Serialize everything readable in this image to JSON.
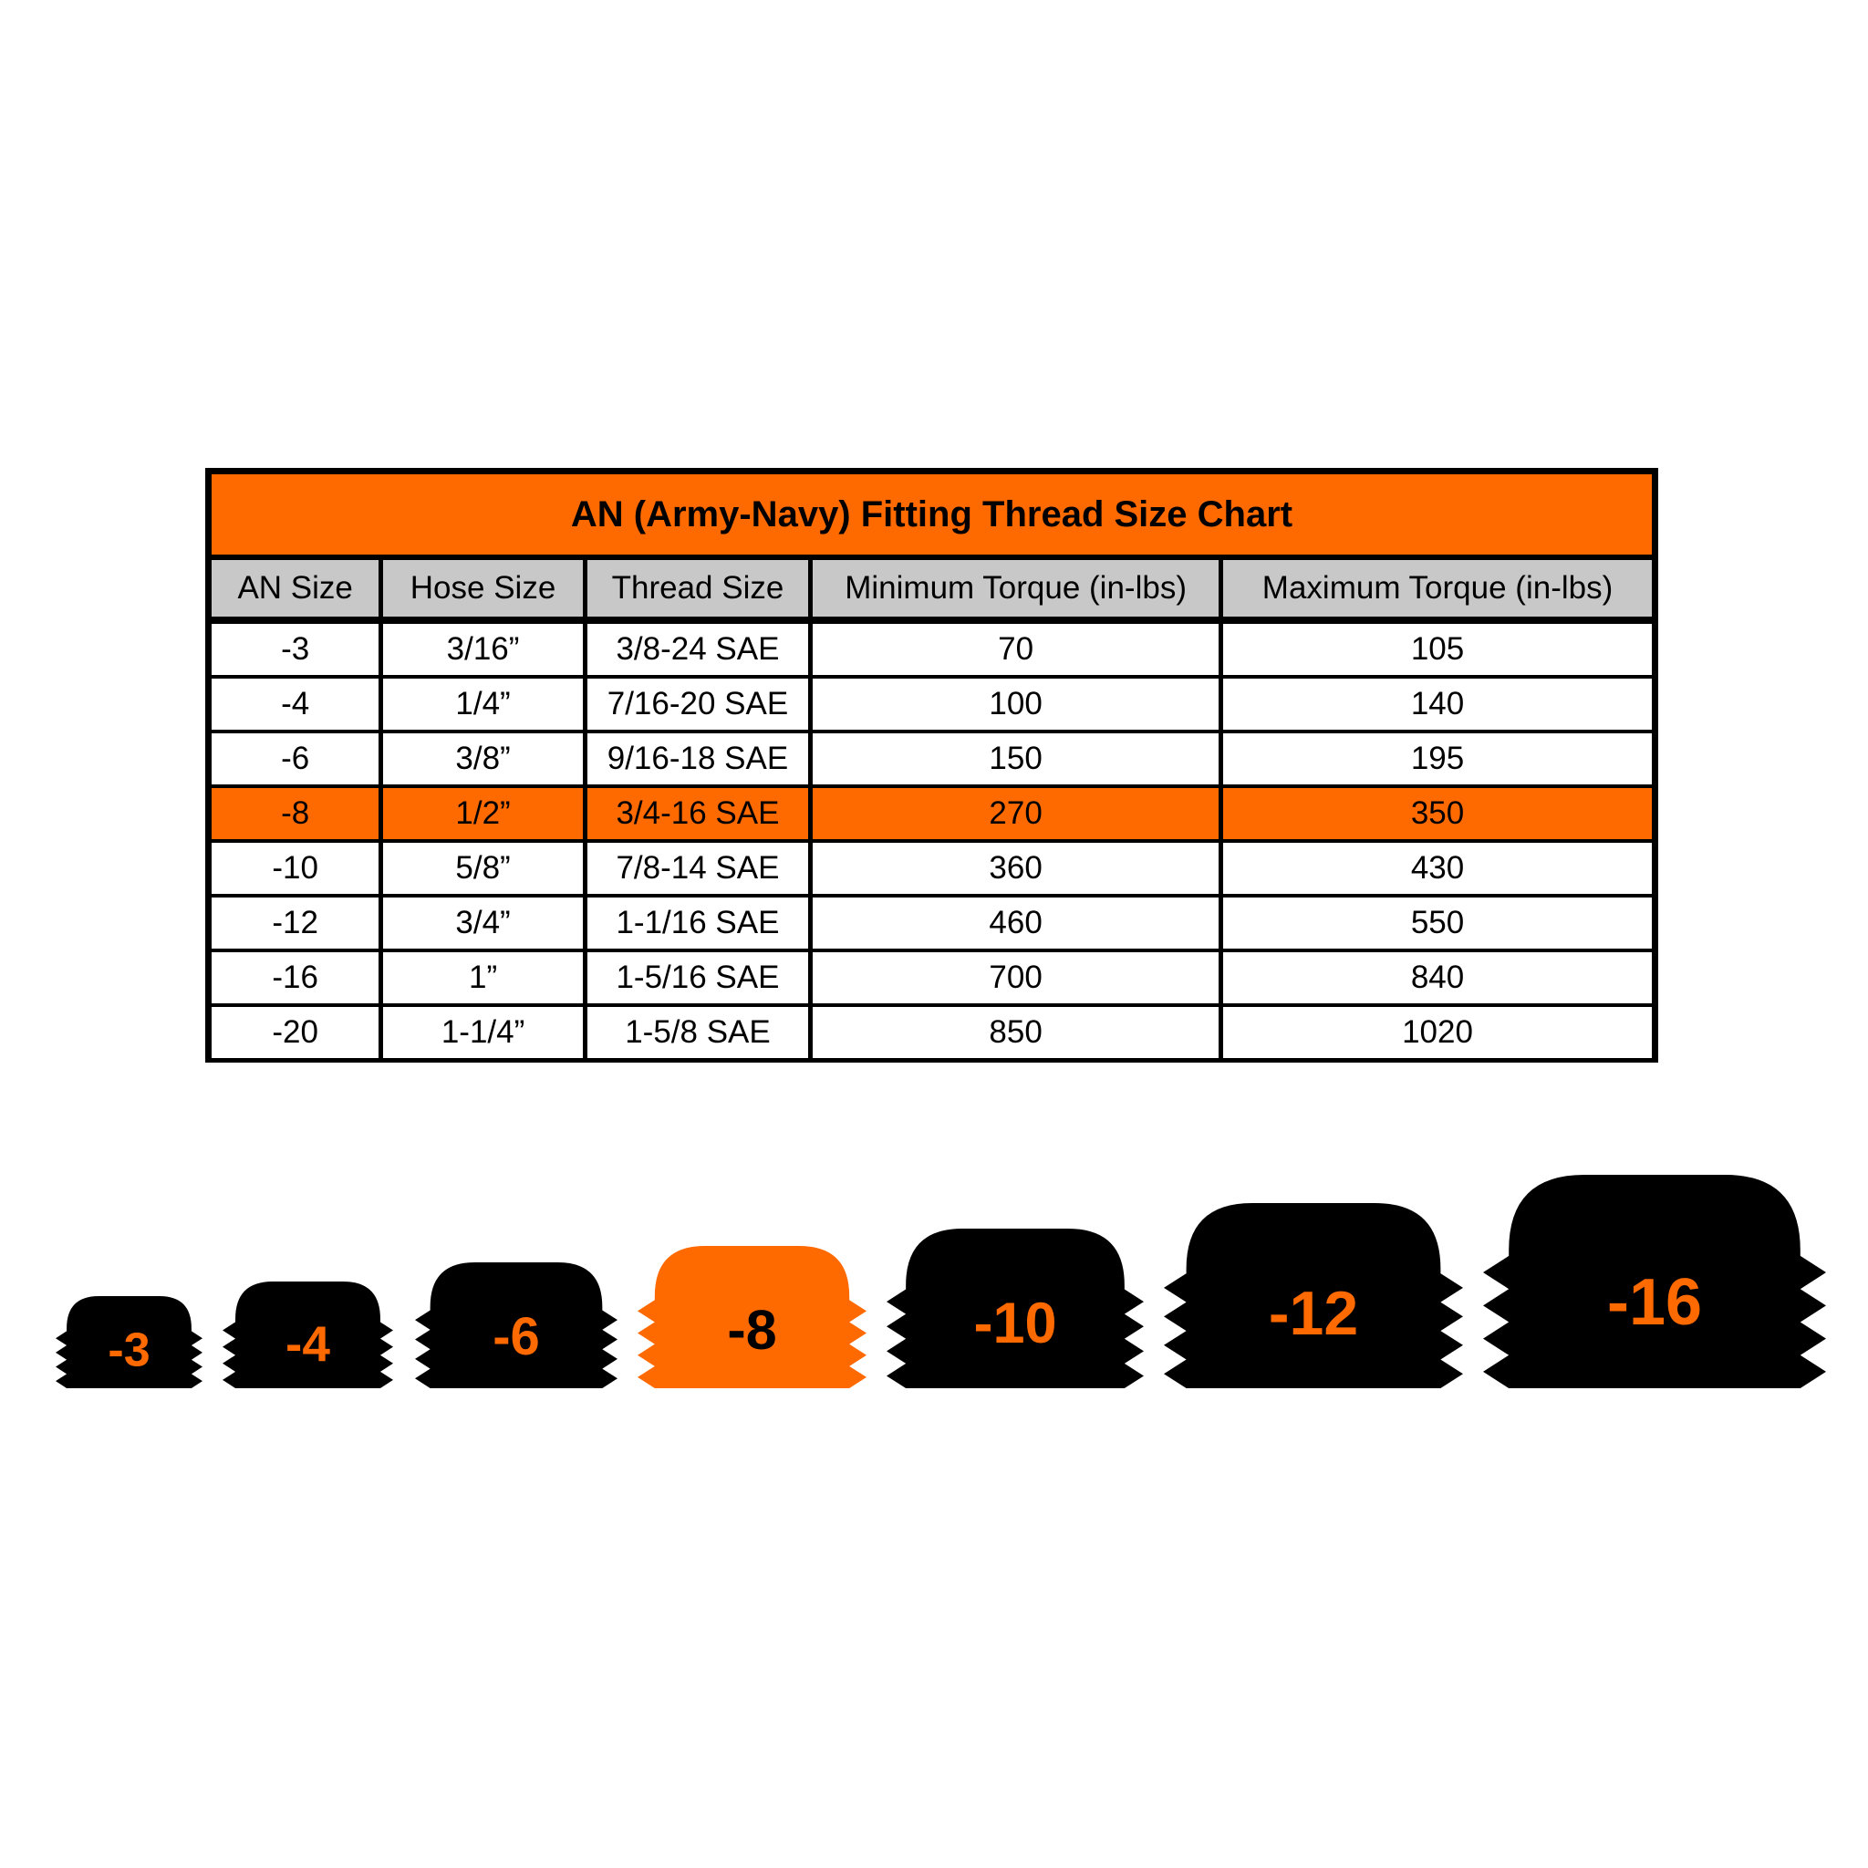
{
  "title": "AN (Army-Navy) Fitting Thread Size Chart",
  "columns": [
    "AN Size",
    "Hose Size",
    "Thread Size",
    "Minimum Torque (in-lbs)",
    "Maximum Torque (in-lbs)"
  ],
  "rows": [
    [
      "-3",
      "3/16”",
      "3/8-24 SAE",
      "70",
      "105"
    ],
    [
      "-4",
      "1/4”",
      "7/16-20 SAE",
      "100",
      "140"
    ],
    [
      "-6",
      "3/8”",
      "9/16-18 SAE",
      "150",
      "195"
    ],
    [
      "-8",
      "1/2”",
      "3/4-16 SAE",
      "270",
      "350"
    ],
    [
      "-10",
      "5/8”",
      "7/8-14 SAE",
      "360",
      "430"
    ],
    [
      "-12",
      "3/4”",
      "1-1/16 SAE",
      "460",
      "550"
    ],
    [
      "-16",
      "1”",
      "1-5/16 SAE",
      "700",
      "840"
    ],
    [
      "-20",
      "1-1/4”",
      "1-5/8 SAE",
      "850",
      "1020"
    ]
  ],
  "highlighted_row": "-8",
  "colors": {
    "accent": "#ff6a00",
    "header_gray": "#c8c8c8",
    "border": "#000000"
  },
  "fittings": [
    {
      "label": "-3",
      "highlighted": false
    },
    {
      "label": "-4",
      "highlighted": false
    },
    {
      "label": "-6",
      "highlighted": false
    },
    {
      "label": "-8",
      "highlighted": true
    },
    {
      "label": "-10",
      "highlighted": false
    },
    {
      "label": "-12",
      "highlighted": false
    },
    {
      "label": "-16",
      "highlighted": false
    }
  ]
}
